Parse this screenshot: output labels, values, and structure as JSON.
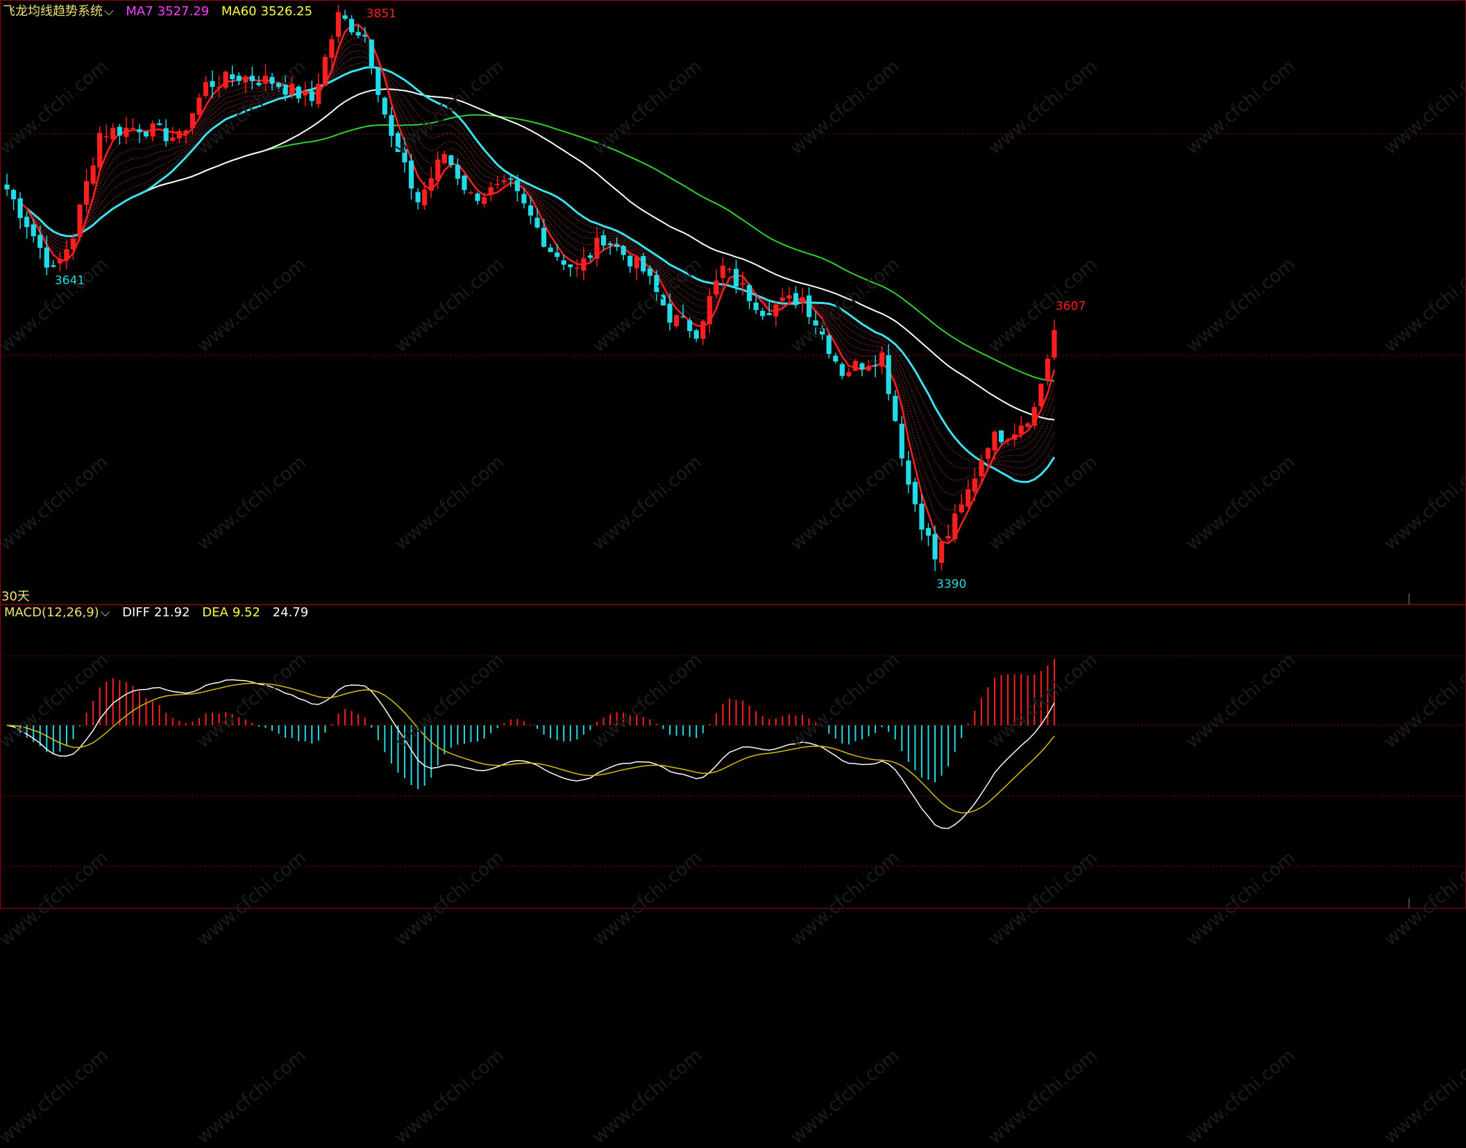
{
  "header": {
    "indicator": "飞龙均线趋势系统",
    "ma7_label": "MA7",
    "ma7_value": "3527.29",
    "ma60_label": "MA60",
    "ma60_value": "3526.25"
  },
  "period_label": "30天",
  "macd_header": {
    "name": "MACD(12,26,9)",
    "diff_label": "DIFF",
    "diff_value": "21.92",
    "dea_label": "DEA",
    "dea_value": "9.52",
    "macd_value": "24.79"
  },
  "watermark": "www.cfchi.com",
  "colors": {
    "up": "#ff1f1f",
    "down": "#22dbe6",
    "ma_white": "#ffffff",
    "ma_red": "#ff2020",
    "ma_cyan": "#39e3f0",
    "ma60_green": "#2ed12e",
    "ma7_label": "#ff40ff",
    "ma60_label": "#ffff40",
    "header": "#f0e070",
    "grid": "#7a0000",
    "diff": "#ffffff",
    "dea": "#d8c000"
  },
  "chart_data": [
    {
      "type": "candlestick",
      "annotations": [
        {
          "text": "3641",
          "index": 7,
          "position": "below"
        },
        {
          "text": "3851",
          "index": 54,
          "position": "above"
        },
        {
          "text": "3390",
          "index": 140,
          "position": "below"
        },
        {
          "text": "3607",
          "index": 158,
          "position": "above"
        }
      ],
      "ylim": [
        3378,
        3870
      ],
      "series_ma": [
        {
          "name": "MA7",
          "value": 3527.29
        },
        {
          "name": "MA60",
          "value": 3526.25
        }
      ]
    },
    {
      "type": "bar+line",
      "name": "MACD(12,26,9)",
      "series": [
        {
          "name": "DIFF",
          "last": 21.92
        },
        {
          "name": "DEA",
          "last": 9.52
        },
        {
          "name": "MACD",
          "last": 24.79
        }
      ],
      "ylim": [
        -95,
        62
      ]
    }
  ]
}
